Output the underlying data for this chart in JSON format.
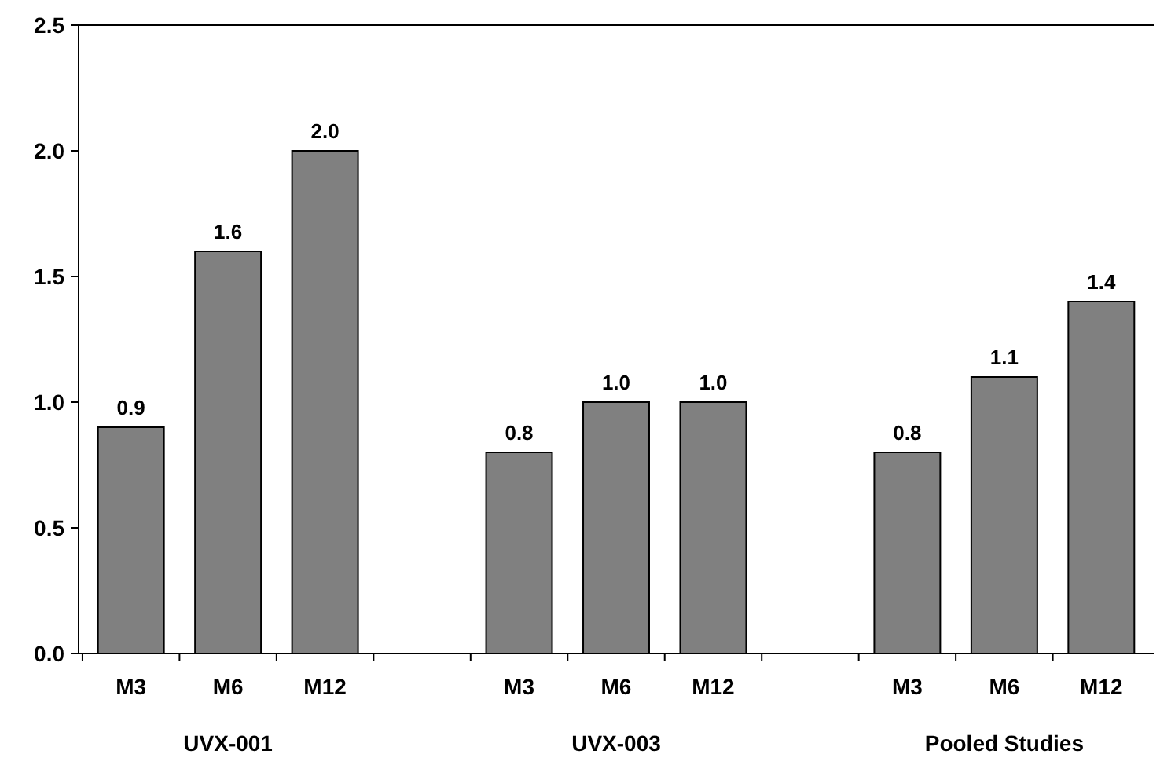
{
  "chart_data": {
    "type": "bar",
    "categories": [
      "M3",
      "M6",
      "M12",
      null,
      "M3",
      "M6",
      "M12",
      null,
      "M3",
      "M6",
      "M12"
    ],
    "values": [
      0.9,
      1.6,
      2.0,
      null,
      0.8,
      1.0,
      1.0,
      null,
      0.8,
      1.1,
      1.4
    ],
    "value_labels": [
      "0.9",
      "1.6",
      "2.0",
      null,
      "0.8",
      "1.0",
      "1.0",
      null,
      "0.8",
      "1.1",
      "1.4"
    ],
    "color": "#808080",
    "ylim": [
      0,
      2.5
    ],
    "yticks": [
      {
        "value": 0,
        "label": "0.0"
      },
      {
        "value": 0.5,
        "label": "0.5"
      },
      {
        "value": 1,
        "label": "1.0"
      },
      {
        "value": 1.5,
        "label": "1.5"
      },
      {
        "value": 2,
        "label": "2.0"
      },
      {
        "value": 2.5,
        "label": "2.5"
      }
    ],
    "annotations": [
      "UVX-001",
      "UVX-003",
      "Pooled Studies"
    ],
    "grid": false
  }
}
